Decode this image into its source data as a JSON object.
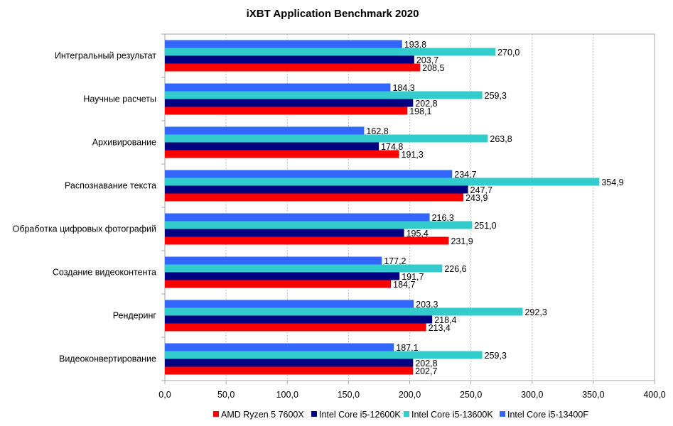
{
  "chart_data": {
    "type": "bar",
    "orientation": "horizontal",
    "title": "iXBT Application Benchmark 2020",
    "xlabel": "",
    "ylabel": "",
    "xlim": [
      0,
      400
    ],
    "x_ticks": [
      0,
      50,
      100,
      150,
      200,
      250,
      300,
      350,
      400
    ],
    "x_tick_labels": [
      "0,0",
      "50,0",
      "100,0",
      "150,0",
      "200,0",
      "250,0",
      "300,0",
      "350,0",
      "400,0"
    ],
    "grid": "vertical dashed",
    "legend_position": "bottom",
    "categories": [
      "Интегральный результат",
      "Научные расчеты",
      "Архивирование",
      "Распознавание текста",
      "Обработка цифровых фотографий",
      "Создание видеоконтента",
      "Рендеринг",
      "Видеоконвертирование"
    ],
    "series": [
      {
        "name": "AMD Ryzen 5 7600X",
        "color": "#ff0000",
        "values": [
          208.5,
          198.1,
          191.3,
          243.9,
          231.9,
          184.7,
          213.4,
          202.7
        ],
        "labels": [
          "208,5",
          "198,1",
          "191,3",
          "243,9",
          "231,9",
          "184,7",
          "213,4",
          "202,7"
        ]
      },
      {
        "name": "Intel Core i5-12600K",
        "color": "#000080",
        "values": [
          203.7,
          202.8,
          174.8,
          247.7,
          195.4,
          191.7,
          218.4,
          202.8
        ],
        "labels": [
          "203,7",
          "202,8",
          "174,8",
          "247,7",
          "195,4",
          "191,7",
          "218,4",
          "202,8"
        ]
      },
      {
        "name": "Intel Core i5-13600K",
        "color": "#33cccc",
        "values": [
          270.0,
          259.3,
          263.8,
          354.9,
          251.0,
          226.6,
          292.3,
          259.3
        ],
        "labels": [
          "270,0",
          "259,3",
          "263,8",
          "354,9",
          "251,0",
          "226,6",
          "292,3",
          "259,3"
        ]
      },
      {
        "name": "Intel Core i5-13400F",
        "color": "#3366ff",
        "values": [
          193.8,
          184.3,
          162.8,
          234.7,
          216.3,
          177.2,
          203.3,
          187.1
        ],
        "labels": [
          "193,8",
          "184,3",
          "162,8",
          "234,7",
          "216,3",
          "177,2",
          "203,3",
          "187,1"
        ]
      }
    ]
  }
}
